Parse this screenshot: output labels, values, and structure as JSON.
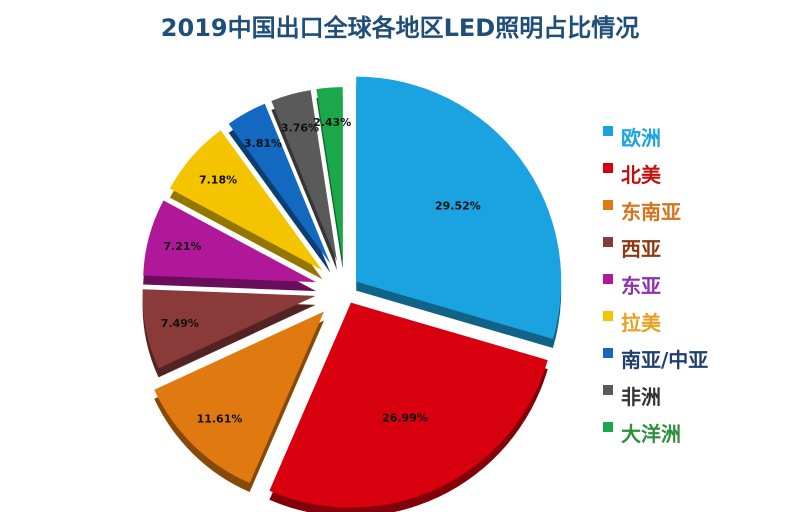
{
  "chart_data": {
    "type": "pie",
    "title": "2019中国出口全球各地区LED照明占比情况",
    "legend_position": "right",
    "exploded": true,
    "style": "3d",
    "slices": [
      {
        "name": "欧洲",
        "value": 29.52,
        "label": "29.52%",
        "color": "#1aa3e0",
        "text_color": "#1aa3e0"
      },
      {
        "name": "北美",
        "value": 26.99,
        "label": "26.99%",
        "color": "#d8000f",
        "text_color": "#c0100f"
      },
      {
        "name": "东南亚",
        "value": 11.61,
        "label": "11.61%",
        "color": "#e07a10",
        "text_color": "#d9731a"
      },
      {
        "name": "西亚",
        "value": 7.49,
        "label": "7.49%",
        "color": "#8b3a3a",
        "text_color": "#8b3a10"
      },
      {
        "name": "东亚",
        "value": 7.21,
        "label": "7.21%",
        "color": "#b0189a",
        "text_color": "#8e2fb0"
      },
      {
        "name": "拉美",
        "value": 7.18,
        "label": "7.18%",
        "color": "#f5c400",
        "text_color": "#e8a020"
      },
      {
        "name": "南亚/中亚",
        "value": 3.81,
        "label": "3.81%",
        "color": "#1368c0",
        "text_color": "#1f3f70"
      },
      {
        "name": "非洲",
        "value": 3.76,
        "label": "3.76%",
        "color": "#5a5a5a",
        "text_color": "#333333"
      },
      {
        "name": "大洋洲",
        "value": 2.43,
        "label": "2.43%",
        "color": "#1aa84a",
        "text_color": "#2f8f3a"
      }
    ]
  }
}
